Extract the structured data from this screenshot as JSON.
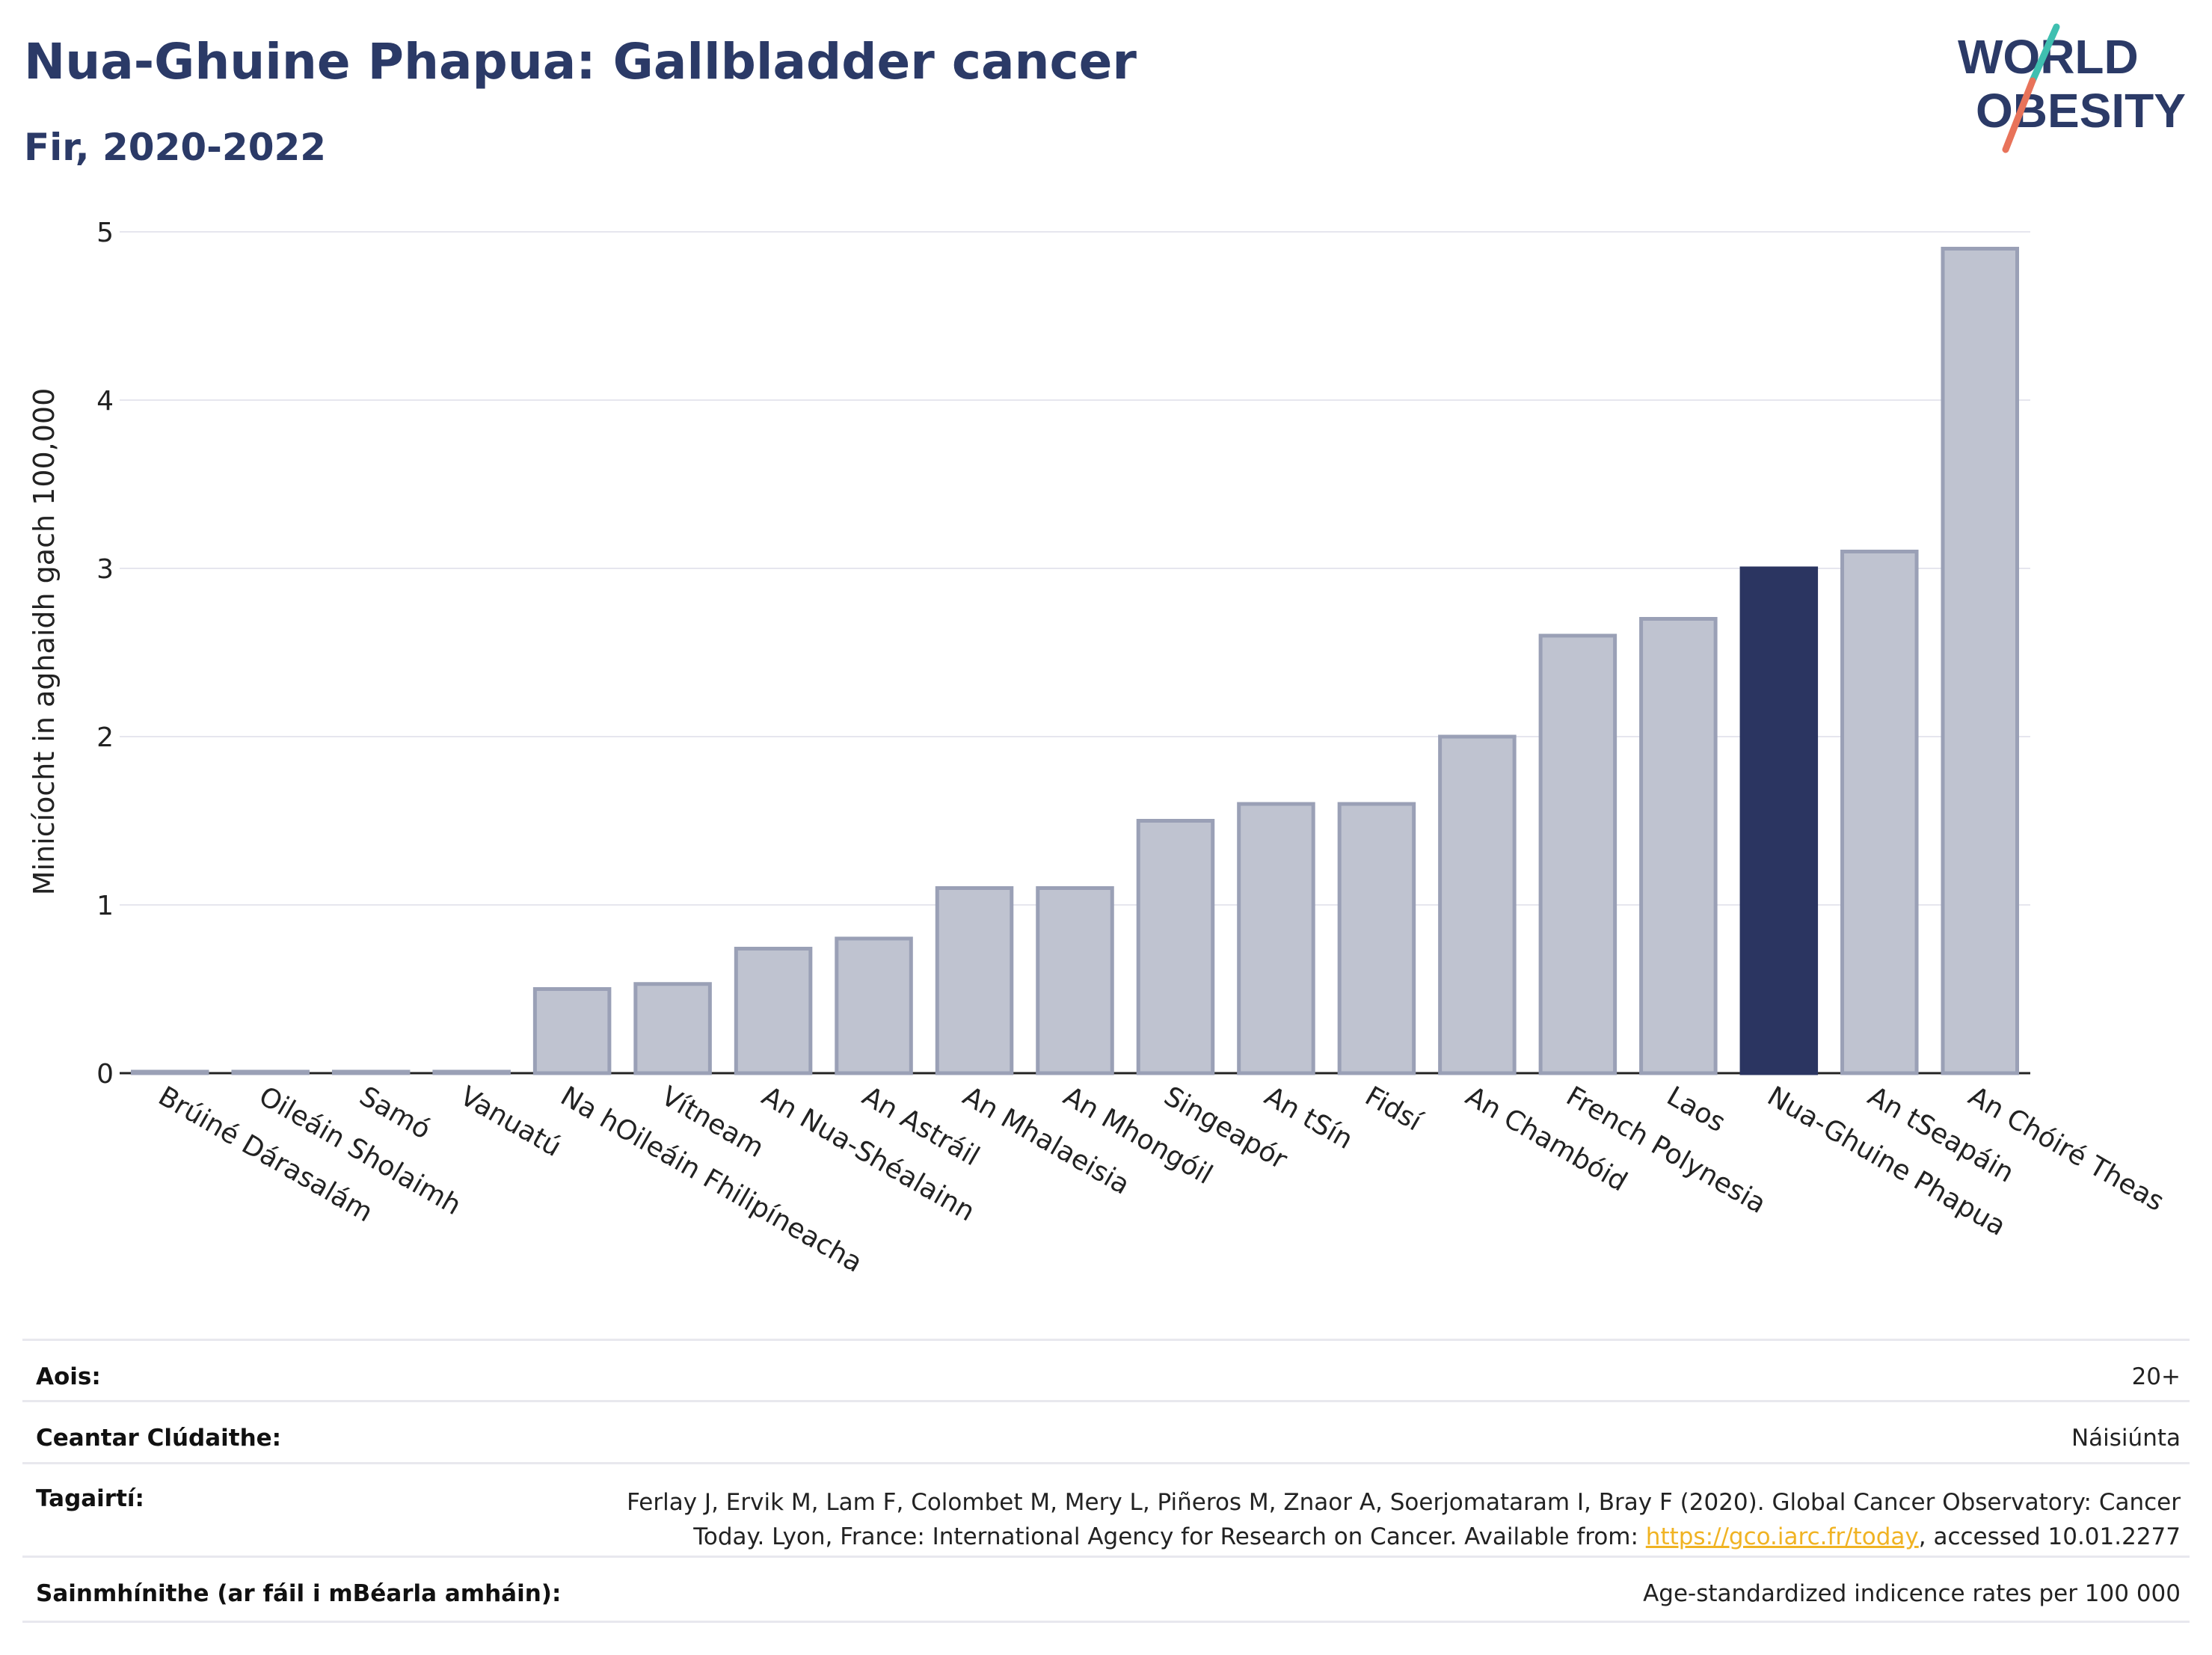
{
  "header": {
    "title": "Nua-Ghuine Phapua: Gallbladder cancer",
    "subtitle": "Fir, 2020-2022"
  },
  "logo": {
    "line1": "WORLD",
    "line2": "OBESITY"
  },
  "chart_data": {
    "type": "bar",
    "ylabel": "Minicíocht in aghaidh gach 100,000",
    "ylim": [
      0,
      5
    ],
    "yticks": [
      0,
      1,
      2,
      3,
      4,
      5
    ],
    "categories": [
      "Brúiné Dárasalám",
      "Oileáin Sholaimh",
      "Samó",
      "Vanuatú",
      "Na hOileáin Fhilipíneacha",
      "Vítneam",
      "An Nua-Shéalainn",
      "An Astráil",
      "An Mhalaeisia",
      "An Mhongóil",
      "Singeapór",
      "An tSín",
      "Fidsí",
      "An Chambóid",
      "French Polynesia",
      "Laos",
      "Nua-Ghuine Phapua",
      "An tSeapáin",
      "An Chóiré Theas"
    ],
    "values": [
      0.0,
      0.0,
      0.0,
      0.0,
      0.5,
      0.53,
      0.74,
      0.8,
      1.1,
      1.1,
      1.5,
      1.6,
      1.6,
      2.0,
      2.6,
      2.7,
      3.0,
      3.1,
      4.9
    ],
    "highlight": "Nua-Ghuine Phapua",
    "colors": {
      "bar": "#bfc3d0",
      "bar_edge": "#9aa0b6",
      "highlight": "#2b3561",
      "grid": "#e6e6ee"
    }
  },
  "footer": [
    {
      "label": "Aois:",
      "value": "20+"
    },
    {
      "label": "Ceantar Clúdaithe:",
      "value": "Náisiúnta"
    },
    {
      "label": "Tagairtí:",
      "value_line1": "Ferlay J, Ervik M, Lam F, Colombet M, Mery L, Piñeros M, Znaor A, Soerjomataram I, Bray F (2020). Global Cancer Observatory: Cancer",
      "value_line2_pre": "Today. Lyon, France: International Agency for Research on Cancer. Available from: ",
      "value_link": "https://gco.iarc.fr/today",
      "value_line2_post": ", accessed 10.01.2277"
    },
    {
      "label": "Sainmhínithe (ar fáil i mBéarla amháin):",
      "value": "Age-standardized indicence rates per 100 000"
    }
  ]
}
